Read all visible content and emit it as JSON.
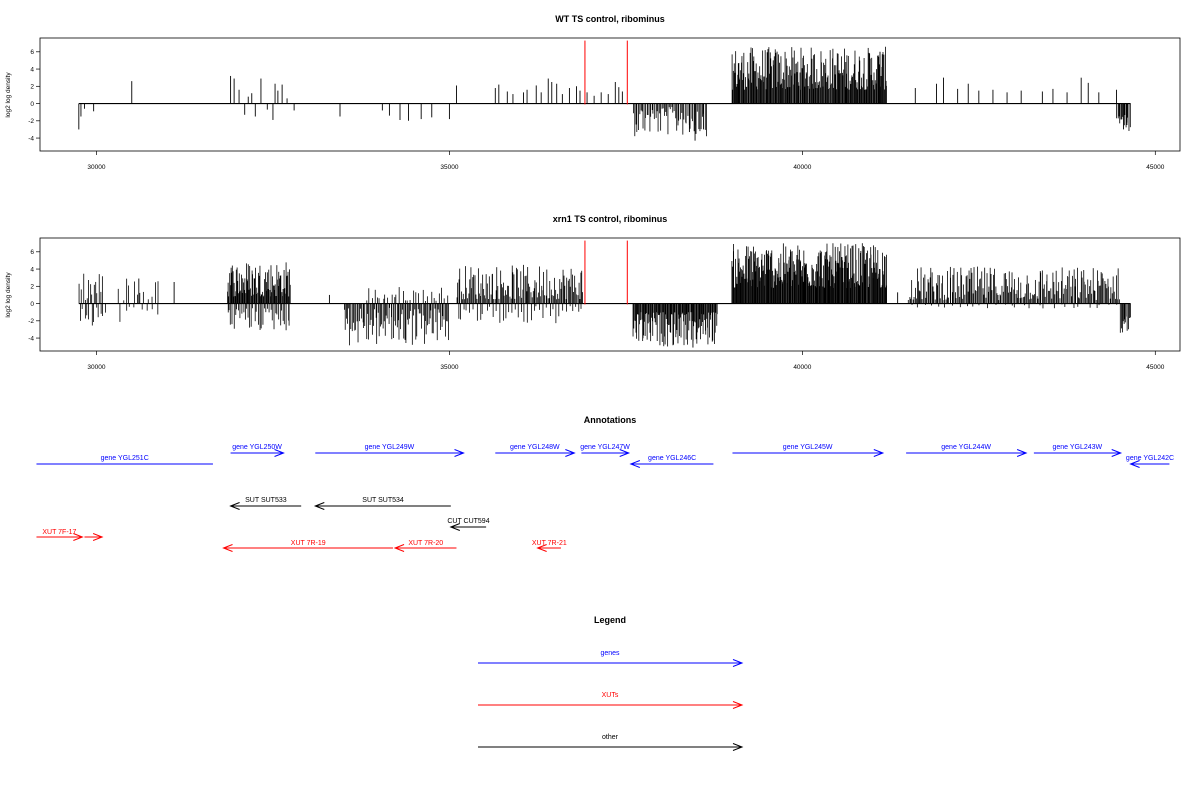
{
  "panels": [
    {
      "title": "WT TS control, ribominus",
      "ylabel": "log2 log density",
      "xticks": [
        30000,
        35000,
        40000,
        45000
      ],
      "yticks": [
        -4,
        -2,
        0,
        2,
        4,
        6
      ],
      "xlim": [
        29200,
        45350
      ],
      "ylim": [
        -5.5,
        7.6
      ],
      "markers": [
        36920,
        37520
      ],
      "bars": [
        [
          29750,
          -3
        ],
        [
          29780,
          -1.5
        ],
        [
          29830,
          -0.6
        ],
        [
          29960,
          -0.9
        ],
        [
          30500,
          2.6
        ],
        [
          31900,
          3.2
        ],
        [
          31950,
          2.9
        ],
        [
          32020,
          1.6
        ],
        [
          32100,
          -1.3
        ],
        [
          32150,
          0.8
        ],
        [
          32200,
          1.2
        ],
        [
          32250,
          -1.5
        ],
        [
          32330,
          2.9
        ],
        [
          32420,
          -0.7
        ],
        [
          32500,
          -1.9
        ],
        [
          32530,
          2.3
        ],
        [
          32570,
          1.5
        ],
        [
          32630,
          2.2
        ],
        [
          32700,
          0.6
        ],
        [
          32800,
          -0.8
        ],
        [
          33450,
          -1.5
        ],
        [
          34050,
          -0.8
        ],
        [
          34150,
          -1.4
        ],
        [
          34300,
          -1.9
        ],
        [
          34420,
          -2
        ],
        [
          34600,
          -1.8
        ],
        [
          34750,
          -1.6
        ],
        [
          35000,
          -1.8
        ],
        [
          35100,
          2.1
        ],
        [
          35650,
          1.8
        ],
        [
          35700,
          2.2
        ],
        [
          35820,
          1.4
        ],
        [
          35900,
          1.1
        ],
        [
          36050,
          1.3
        ],
        [
          36100,
          1.6
        ],
        [
          36230,
          2.1
        ],
        [
          36300,
          1.3
        ],
        [
          36400,
          2.9
        ],
        [
          36450,
          2.5
        ],
        [
          36520,
          2.3
        ],
        [
          36600,
          1.1
        ],
        [
          36700,
          1.8
        ],
        [
          36800,
          2
        ],
        [
          36850,
          1.5
        ],
        [
          36950,
          1.3
        ],
        [
          37050,
          0.9
        ],
        [
          37150,
          1.3
        ],
        [
          37250,
          1.1
        ],
        [
          37350,
          2.5
        ],
        [
          37400,
          1.9
        ],
        [
          37450,
          1.4
        ],
        [
          38400,
          -3.3
        ],
        [
          38480,
          -4.3
        ],
        [
          38600,
          -3
        ],
        [
          39100,
          4.7
        ],
        [
          41100,
          6
        ],
        [
          41600,
          1.8
        ],
        [
          41900,
          2.3
        ],
        [
          42000,
          3
        ],
        [
          42200,
          1.7
        ],
        [
          42350,
          2.3
        ],
        [
          42500,
          1.5
        ],
        [
          42700,
          1.6
        ],
        [
          42900,
          1.3
        ],
        [
          43100,
          1.5
        ],
        [
          43400,
          1.4
        ],
        [
          43550,
          1.7
        ],
        [
          43750,
          1.3
        ],
        [
          43950,
          3
        ],
        [
          44050,
          2.4
        ],
        [
          44200,
          1.3
        ],
        [
          44450,
          1.6
        ],
        [
          44550,
          -3
        ],
        [
          44600,
          -2.2
        ]
      ],
      "dense": [
        {
          "x0": 37600,
          "x1": 38650,
          "sign": -1,
          "hmin": 0.4,
          "hmax": 3.8,
          "n": 60
        },
        {
          "x0": 39000,
          "x1": 41200,
          "sign": 1,
          "hmin": 1.6,
          "hmax": 6.6,
          "n": 220
        },
        {
          "x0": 44450,
          "x1": 44650,
          "sign": -1,
          "hmin": 1.2,
          "hmax": 3.2,
          "n": 14
        }
      ]
    },
    {
      "title": "xrn1 TS control, ribominus",
      "ylabel": "log2 log density",
      "xticks": [
        30000,
        35000,
        40000,
        45000
      ],
      "yticks": [
        -4,
        -2,
        0,
        2,
        4,
        6
      ],
      "xlim": [
        29200,
        45350
      ],
      "ylim": [
        -5.5,
        7.6
      ],
      "markers": [
        36920,
        37520
      ],
      "bars": [
        [
          30600,
          2.9
        ],
        [
          31100,
          2.5
        ],
        [
          33300,
          1
        ],
        [
          38450,
          -5.1
        ],
        [
          41350,
          1.3
        ]
      ],
      "dense": [
        {
          "x0": 29750,
          "x1": 30100,
          "sign": 1,
          "hmin": 0.4,
          "hmax": 3.6,
          "n": 14
        },
        {
          "x0": 29750,
          "x1": 30150,
          "sign": -1,
          "hmin": 0.4,
          "hmax": 2.8,
          "n": 12
        },
        {
          "x0": 30300,
          "x1": 30900,
          "sign": 1,
          "hmin": 0.3,
          "hmax": 3.5,
          "n": 12
        },
        {
          "x0": 30300,
          "x1": 30900,
          "sign": -1,
          "hmin": 0.3,
          "hmax": 2.2,
          "n": 8
        },
        {
          "x0": 31850,
          "x1": 32750,
          "sign": 1,
          "hmin": 0.8,
          "hmax": 5,
          "n": 90
        },
        {
          "x0": 31850,
          "x1": 32750,
          "sign": -1,
          "hmin": 0.5,
          "hmax": 3.2,
          "n": 40
        },
        {
          "x0": 33500,
          "x1": 35000,
          "sign": -1,
          "hmin": 0.5,
          "hmax": 5,
          "n": 90
        },
        {
          "x0": 33800,
          "x1": 35000,
          "sign": 1,
          "hmin": 0.3,
          "hmax": 2,
          "n": 30
        },
        {
          "x0": 35100,
          "x1": 36900,
          "sign": 1,
          "hmin": 0.5,
          "hmax": 4.5,
          "n": 120
        },
        {
          "x0": 35100,
          "x1": 36900,
          "sign": -1,
          "hmin": 0.3,
          "hmax": 2.5,
          "n": 40
        },
        {
          "x0": 37600,
          "x1": 38800,
          "sign": -1,
          "hmin": 1,
          "hmax": 5,
          "n": 120
        },
        {
          "x0": 39000,
          "x1": 41200,
          "sign": 1,
          "hmin": 1.8,
          "hmax": 7,
          "n": 260
        },
        {
          "x0": 41500,
          "x1": 44500,
          "sign": 1,
          "hmin": 0.4,
          "hmax": 4.3,
          "n": 200
        },
        {
          "x0": 41500,
          "x1": 44500,
          "sign": -1,
          "hmin": 0.1,
          "hmax": 0.6,
          "n": 30
        },
        {
          "x0": 44500,
          "x1": 44650,
          "sign": -1,
          "hmin": 1.5,
          "hmax": 3.5,
          "n": 12
        }
      ]
    }
  ],
  "annotations": {
    "title": "Annotations",
    "features": [
      {
        "label": "gene YGL251C",
        "x0": 29150,
        "x1": 31650,
        "row": 1,
        "dir": "none",
        "color": "#0000ff"
      },
      {
        "label": "gene YGL250W",
        "x0": 31900,
        "x1": 32650,
        "row": 0,
        "dir": "right",
        "color": "#0000ff"
      },
      {
        "label": "gene YGL249W",
        "x0": 33100,
        "x1": 35200,
        "row": 0,
        "dir": "right",
        "color": "#0000ff"
      },
      {
        "label": "gene YGL248W",
        "x0": 35650,
        "x1": 36770,
        "row": 0,
        "dir": "right",
        "color": "#0000ff"
      },
      {
        "label": "gene YGL247W",
        "x0": 36870,
        "x1": 37540,
        "row": 0,
        "dir": "right",
        "color": "#0000ff"
      },
      {
        "label": "gene YGL246C",
        "x0": 37570,
        "x1": 38740,
        "row": 1,
        "dir": "left",
        "color": "#0000ff"
      },
      {
        "label": "gene YGL245W",
        "x0": 39010,
        "x1": 41140,
        "row": 0,
        "dir": "right",
        "color": "#0000ff"
      },
      {
        "label": "gene YGL244W",
        "x0": 41470,
        "x1": 43170,
        "row": 0,
        "dir": "right",
        "color": "#0000ff"
      },
      {
        "label": "gene YGL243W",
        "x0": 43280,
        "x1": 44510,
        "row": 0,
        "dir": "right",
        "color": "#0000ff"
      },
      {
        "label": "gene YGL242C",
        "x0": 44650,
        "x1": 45200,
        "row": 1,
        "dir": "left",
        "color": "#0000ff"
      },
      {
        "label": "SUT SUT533",
        "x0": 31900,
        "x1": 32900,
        "row": 2,
        "dir": "left",
        "color": "#000000"
      },
      {
        "label": "SUT SUT534",
        "x0": 33100,
        "x1": 35020,
        "row": 2,
        "dir": "left",
        "color": "#000000"
      },
      {
        "label": "CUT CUT594",
        "x0": 35020,
        "x1": 35520,
        "row": 3,
        "dir": "left",
        "color": "#000000"
      },
      {
        "label": "XUT 7F-17",
        "x0": 29150,
        "x1": 29800,
        "row": 4,
        "dir": "right",
        "color": "#ff0000"
      },
      {
        "label": "",
        "x0": 29830,
        "x1": 30080,
        "row": 4,
        "dir": "right",
        "color": "#ff0000"
      },
      {
        "label": "XUT 7R-19",
        "x0": 31800,
        "x1": 34200,
        "row": 5,
        "dir": "left",
        "color": "#ff0000"
      },
      {
        "label": "XUT 7R-20",
        "x0": 34230,
        "x1": 35100,
        "row": 5,
        "dir": "left",
        "color": "#ff0000"
      },
      {
        "label": "XUT 7R-21",
        "x0": 36250,
        "x1": 36580,
        "row": 5,
        "dir": "left",
        "color": "#ff0000"
      }
    ]
  },
  "legend": {
    "title": "Legend",
    "items": [
      {
        "label": "genes",
        "color": "#0000ff"
      },
      {
        "label": "XUTs",
        "color": "#ff0000"
      },
      {
        "label": "other",
        "color": "#000000"
      }
    ]
  }
}
